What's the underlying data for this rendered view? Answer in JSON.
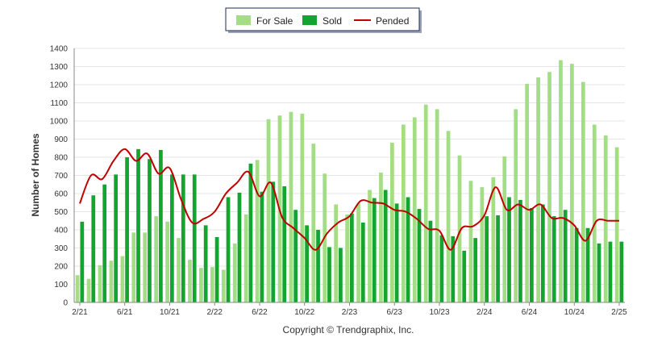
{
  "chart_data": {
    "type": "bar",
    "ylabel": "Number of Homes",
    "xlabel": "",
    "ylim": [
      0,
      1400
    ],
    "yticks": [
      0,
      100,
      200,
      300,
      400,
      500,
      600,
      700,
      800,
      900,
      1000,
      1100,
      1200,
      1300,
      1400
    ],
    "grid": true,
    "legend_placement": "top-center",
    "colors": {
      "for_sale": "#a3de84",
      "sold": "#14a531",
      "pended": "#c00000",
      "grid": "#e6e6e6",
      "axis": "#888888"
    },
    "categories": [
      "2/21",
      "3/21",
      "4/21",
      "5/21",
      "6/21",
      "7/21",
      "8/21",
      "9/21",
      "10/21",
      "11/21",
      "12/21",
      "1/22",
      "2/22",
      "3/22",
      "4/22",
      "5/22",
      "6/22",
      "7/22",
      "8/22",
      "9/22",
      "10/22",
      "11/22",
      "12/22",
      "1/23",
      "2/23",
      "3/23",
      "4/23",
      "5/23",
      "6/23",
      "7/23",
      "8/23",
      "9/23",
      "10/23",
      "11/23",
      "12/23",
      "1/24",
      "2/24",
      "3/24",
      "4/24",
      "5/24",
      "6/24",
      "7/24",
      "8/24",
      "9/24",
      "10/24",
      "11/24",
      "12/24",
      "1/25",
      "2/25"
    ],
    "xtick_labels": [
      "2/21",
      "6/21",
      "10/21",
      "2/22",
      "6/22",
      "10/22",
      "2/23",
      "6/23",
      "10/23",
      "2/24",
      "6/24",
      "10/24",
      "2/25"
    ],
    "series": [
      {
        "name": "For Sale",
        "kind": "bar",
        "values": [
          150,
          130,
          205,
          230,
          255,
          385,
          385,
          475,
          445,
          355,
          235,
          190,
          195,
          180,
          325,
          485,
          785,
          1010,
          1030,
          1050,
          1040,
          875,
          710,
          540,
          485,
          545,
          620,
          715,
          880,
          980,
          1020,
          1090,
          1065,
          945,
          810,
          670,
          635,
          690,
          805,
          1065,
          1205,
          1240,
          1270,
          1335,
          1315,
          1215,
          980,
          920,
          855
        ]
      },
      {
        "name": "Sold",
        "kind": "bar",
        "values": [
          445,
          590,
          650,
          705,
          800,
          845,
          790,
          840,
          705,
          705,
          705,
          425,
          360,
          580,
          605,
          765,
          610,
          665,
          640,
          510,
          425,
          400,
          305,
          300,
          490,
          440,
          575,
          620,
          545,
          580,
          515,
          450,
          370,
          365,
          285,
          355,
          475,
          480,
          580,
          565,
          520,
          540,
          475,
          510,
          410,
          410,
          325,
          335,
          335
        ]
      },
      {
        "name": "Pended",
        "kind": "line",
        "values": [
          545,
          700,
          680,
          780,
          845,
          780,
          820,
          710,
          740,
          570,
          440,
          460,
          500,
          600,
          660,
          720,
          585,
          660,
          470,
          410,
          355,
          290,
          380,
          440,
          475,
          560,
          550,
          545,
          510,
          500,
          460,
          405,
          395,
          290,
          410,
          420,
          480,
          635,
          510,
          540,
          510,
          540,
          465,
          465,
          425,
          340,
          450,
          450,
          450
        ]
      }
    ],
    "legend": {
      "for_sale_label": "For Sale",
      "sold_label": "Sold",
      "pended_label": "Pended"
    },
    "copyright": "Copyright © Trendgraphix, Inc."
  }
}
